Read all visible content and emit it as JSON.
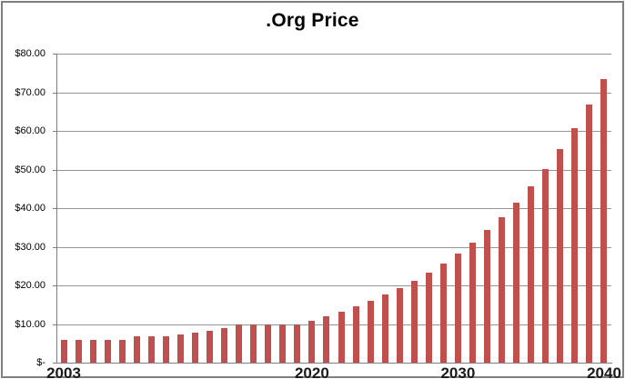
{
  "title": ".Org Price",
  "colors": {
    "bar": "#C0504D",
    "gridline": "#969696",
    "axis": "#7f7f7f",
    "frame_border": "#7f7f7f",
    "text": "#000000",
    "background": "#ffffff"
  },
  "y_axis": {
    "ticks": [
      {
        "label": "$80.00",
        "value": 80
      },
      {
        "label": "$70.00",
        "value": 70
      },
      {
        "label": "$60.00",
        "value": 60
      },
      {
        "label": "$50.00",
        "value": 50
      },
      {
        "label": "$40.00",
        "value": 40
      },
      {
        "label": "$30.00",
        "value": 30
      },
      {
        "label": "$20.00",
        "value": 20
      },
      {
        "label": "$10.00",
        "value": 10
      },
      {
        "label": "$-",
        "value": 0
      }
    ]
  },
  "x_axis": {
    "labels": [
      {
        "text": "2003",
        "year": 2003
      },
      {
        "text": "2020",
        "year": 2020
      },
      {
        "text": "2030",
        "year": 2030
      },
      {
        "text": "2040",
        "year": 2040
      }
    ]
  },
  "chart_data": {
    "type": "bar",
    "title": ".Org Price",
    "xlabel": "",
    "ylabel": "",
    "ylim": [
      0,
      80
    ],
    "grid": true,
    "legend": false,
    "bar_color": "#C0504D",
    "x": [
      2003,
      2004,
      2005,
      2006,
      2007,
      2008,
      2009,
      2010,
      2011,
      2012,
      2013,
      2014,
      2015,
      2016,
      2017,
      2018,
      2019,
      2020,
      2021,
      2022,
      2023,
      2024,
      2025,
      2026,
      2027,
      2028,
      2029,
      2030,
      2031,
      2032,
      2033,
      2034,
      2035,
      2036,
      2037,
      2038,
      2039,
      2040
    ],
    "values": [
      6.0,
      6.0,
      6.0,
      6.0,
      6.0,
      6.75,
      6.75,
      6.75,
      7.21,
      7.7,
      8.25,
      9.05,
      9.93,
      9.93,
      9.93,
      9.93,
      9.93,
      10.92,
      12.01,
      13.22,
      14.54,
      15.99,
      17.59,
      19.35,
      21.28,
      23.41,
      25.75,
      28.33,
      31.16,
      34.28,
      37.7,
      41.47,
      45.62,
      50.18,
      55.2,
      60.72,
      66.79,
      73.47
    ]
  }
}
